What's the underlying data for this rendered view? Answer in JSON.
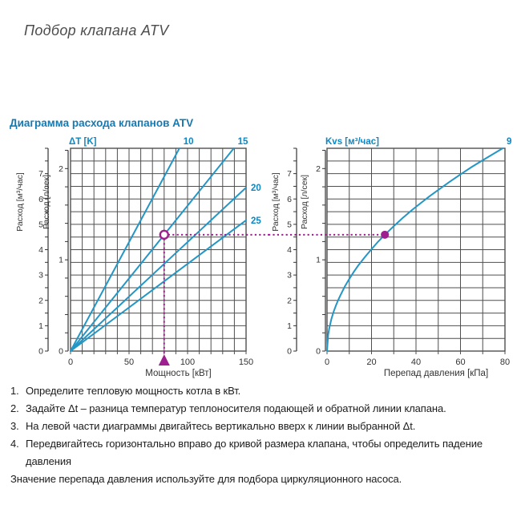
{
  "page": {
    "title": "Подбор клапана ATV"
  },
  "section": {
    "heading": "Диаграмма расхода клапанов ATV"
  },
  "colors": {
    "heading_blue": "#1679b2",
    "line_blue": "#2496c6",
    "label_blue": "#0e87c3",
    "marker_purple": "#9e1f8e",
    "grid": "#4f4f4f",
    "axis_text": "#333333"
  },
  "chart_data": [
    {
      "type": "line",
      "side": "left",
      "corner_label": "ΔT [K]",
      "x_axis": {
        "label": "Мощность [кВт]",
        "range": [
          0,
          150
        ],
        "tick_labels": [
          0,
          50,
          100,
          150
        ],
        "grid_step": 10
      },
      "y_axis_outer": {
        "label": "Расход [м³/час]",
        "range": [
          0,
          8
        ],
        "tick_labels": [
          0,
          1,
          2,
          3,
          4,
          5,
          6,
          7
        ],
        "minor_step": 0.5
      },
      "y_axis_inner": {
        "label": "Расход [л/сек]",
        "unit_in_outer": 3.6,
        "tick_labels": [
          0,
          1,
          2
        ],
        "minor_step": 0.2,
        "max": 2.2
      },
      "grid": true,
      "series": [
        {
          "name": "10",
          "label_pos": "top",
          "points": [
            [
              0,
              0
            ],
            [
              93,
              8
            ]
          ]
        },
        {
          "name": "15",
          "label_pos": "top",
          "points": [
            [
              0,
              0
            ],
            [
              139.5,
              8
            ]
          ]
        },
        {
          "name": "20",
          "label_pos": "right",
          "points": [
            [
              0,
              0
            ],
            [
              150,
              6.45
            ]
          ]
        },
        {
          "name": "25",
          "label_pos": "right",
          "points": [
            [
              0,
              0
            ],
            [
              150,
              5.16
            ]
          ]
        }
      ],
      "annotation": {
        "point": [
          80,
          4.59
        ],
        "marker": "open-circle",
        "vertical_drop": true,
        "axis_arrow": true,
        "h_line": "right"
      }
    },
    {
      "type": "line",
      "side": "right",
      "corner_label": "Kvs [м³/час]",
      "x_axis": {
        "label": "Перепад давления [кПа]",
        "range": [
          0,
          80
        ],
        "tick_labels": [
          0,
          20,
          40,
          60,
          80
        ],
        "grid_step": 10
      },
      "y_axis_outer": {
        "label": "Расход [м³/час]",
        "range": [
          0,
          8
        ],
        "tick_labels": [
          0,
          1,
          2,
          3,
          4,
          5,
          6,
          7
        ],
        "minor_step": 0.5
      },
      "y_axis_inner": {
        "label": "Расход [л/сек]",
        "unit_in_outer": 3.6,
        "tick_labels": [
          0,
          1,
          2
        ],
        "minor_step": 0.2,
        "max": 2.2
      },
      "grid": true,
      "series": [
        {
          "name": "9",
          "label_pos": "top",
          "points": [
            [
              0,
              0
            ],
            [
              0.5,
              0.64
            ],
            [
              1,
              0.9
            ],
            [
              2,
              1.27
            ],
            [
              3,
              1.56
            ],
            [
              4,
              1.8
            ],
            [
              5,
              2.01
            ],
            [
              6,
              2.2
            ],
            [
              8,
              2.55
            ],
            [
              10,
              2.85
            ],
            [
              12,
              3.12
            ],
            [
              14,
              3.37
            ],
            [
              17,
              3.71
            ],
            [
              20,
              4.02
            ],
            [
              23,
              4.32
            ],
            [
              26,
              4.59
            ],
            [
              30,
              4.93
            ],
            [
              34,
              5.25
            ],
            [
              38,
              5.55
            ],
            [
              42,
              5.83
            ],
            [
              46,
              6.1
            ],
            [
              50,
              6.36
            ],
            [
              55,
              6.67
            ],
            [
              60,
              6.97
            ],
            [
              65,
              7.26
            ],
            [
              70,
              7.53
            ],
            [
              75,
              7.79
            ],
            [
              79,
              8
            ]
          ]
        }
      ],
      "annotation": {
        "point": [
          26,
          4.59
        ],
        "marker": "dot",
        "vertical_drop": false,
        "axis_arrow": false,
        "h_line": "left"
      }
    }
  ],
  "instructions": {
    "items": [
      {
        "num": "1.",
        "text": "Определите тепловую мощность котла в кВт."
      },
      {
        "num": "2.",
        "text": "Задайте Δt – разница температур теплоносителя подающей и обратной линии клапана."
      },
      {
        "num": "3.",
        "text": "На левой части диаграммы двигайтесь вертикально вверх к линии выбранной Δt."
      },
      {
        "num": "4.",
        "text": "Передвигайтесь горизонтально вправо до кривой размера клапана, чтобы определить падение давления"
      }
    ],
    "note": "Значение перепада давления используйте для подбора циркуляционного насоса."
  }
}
